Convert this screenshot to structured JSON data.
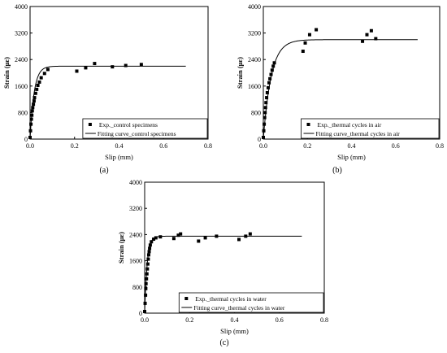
{
  "chart_data": [
    {
      "type": "scatter",
      "panel_label": "(a)",
      "xlabel": "Slip (mm)",
      "ylabel": "Strain (με)",
      "xlim": [
        0,
        0.8
      ],
      "ylim": [
        0,
        4000
      ],
      "xticks": [
        "0.0",
        "0.2",
        "0.4",
        "0.6",
        "0.8"
      ],
      "yticks": [
        "0",
        "800",
        "1600",
        "2400",
        "3200",
        "4000"
      ],
      "legend_position": "bottom-right",
      "series": [
        {
          "name": "Exp._control specimens",
          "kind": "points",
          "marker": "square",
          "points": [
            [
              0.0,
              50
            ],
            [
              0.002,
              250
            ],
            [
              0.004,
              450
            ],
            [
              0.006,
              600
            ],
            [
              0.008,
              720
            ],
            [
              0.01,
              850
            ],
            [
              0.012,
              950
            ],
            [
              0.015,
              1050
            ],
            [
              0.018,
              1150
            ],
            [
              0.02,
              1250
            ],
            [
              0.025,
              1380
            ],
            [
              0.03,
              1500
            ],
            [
              0.035,
              1620
            ],
            [
              0.042,
              1720
            ],
            [
              0.05,
              1850
            ],
            [
              0.065,
              1980
            ],
            [
              0.08,
              2100
            ],
            [
              0.21,
              2050
            ],
            [
              0.25,
              2150
            ],
            [
              0.29,
              2280
            ],
            [
              0.37,
              2180
            ],
            [
              0.43,
              2220
            ],
            [
              0.5,
              2250
            ]
          ]
        },
        {
          "name": "Fitting curve_control specimens",
          "kind": "curve",
          "plateau": 2200,
          "rate": 55,
          "x_max": 0.7
        }
      ]
    },
    {
      "type": "scatter",
      "panel_label": "(b)",
      "xlabel": "Slip (mm)",
      "ylabel": "Strain (με)",
      "xlim": [
        0,
        0.8
      ],
      "ylim": [
        0,
        4000
      ],
      "xticks": [
        "0.0",
        "0.2",
        "0.4",
        "0.6",
        "0.8"
      ],
      "yticks": [
        "0",
        "800",
        "1600",
        "2400",
        "3200",
        "4000"
      ],
      "legend_position": "bottom-right",
      "series": [
        {
          "name": "Exp._thermal cycles in air",
          "kind": "points",
          "marker": "square",
          "points": [
            [
              0.0,
              50
            ],
            [
              0.002,
              250
            ],
            [
              0.004,
              450
            ],
            [
              0.006,
              650
            ],
            [
              0.008,
              800
            ],
            [
              0.01,
              950
            ],
            [
              0.012,
              1100
            ],
            [
              0.015,
              1250
            ],
            [
              0.018,
              1400
            ],
            [
              0.022,
              1550
            ],
            [
              0.026,
              1700
            ],
            [
              0.03,
              1820
            ],
            [
              0.035,
              1950
            ],
            [
              0.04,
              2080
            ],
            [
              0.045,
              2200
            ],
            [
              0.05,
              2300
            ],
            [
              0.18,
              2650
            ],
            [
              0.19,
              2900
            ],
            [
              0.21,
              3150
            ],
            [
              0.24,
              3300
            ],
            [
              0.45,
              2950
            ],
            [
              0.47,
              3150
            ],
            [
              0.49,
              3270
            ],
            [
              0.51,
              3030
            ]
          ]
        },
        {
          "name": "Fitting curve_thermal cycles in air",
          "kind": "curve",
          "plateau": 3000,
          "rate": 28,
          "x_max": 0.7
        }
      ]
    },
    {
      "type": "scatter",
      "panel_label": "(c)",
      "xlabel": "Slip (mm)",
      "ylabel": "Strain (με)",
      "xlim": [
        0,
        0.8
      ],
      "ylim": [
        0,
        4000
      ],
      "xticks": [
        "0.0",
        "0.2",
        "0.4",
        "0.6",
        "0.8"
      ],
      "yticks": [
        "0",
        "800",
        "1600",
        "2400",
        "3200",
        "4000"
      ],
      "legend_position": "bottom-right",
      "series": [
        {
          "name": "Exp._thermal cycles in water",
          "kind": "points",
          "marker": "square",
          "points": [
            [
              0.0,
              50
            ],
            [
              0.002,
              300
            ],
            [
              0.004,
              550
            ],
            [
              0.005,
              750
            ],
            [
              0.006,
              900
            ],
            [
              0.008,
              1050
            ],
            [
              0.01,
              1200
            ],
            [
              0.012,
              1350
            ],
            [
              0.014,
              1500
            ],
            [
              0.016,
              1650
            ],
            [
              0.018,
              1780
            ],
            [
              0.02,
              1880
            ],
            [
              0.022,
              1980
            ],
            [
              0.025,
              2080
            ],
            [
              0.03,
              2180
            ],
            [
              0.04,
              2260
            ],
            [
              0.05,
              2300
            ],
            [
              0.07,
              2330
            ],
            [
              0.13,
              2280
            ],
            [
              0.15,
              2380
            ],
            [
              0.16,
              2420
            ],
            [
              0.24,
              2200
            ],
            [
              0.27,
              2300
            ],
            [
              0.32,
              2350
            ],
            [
              0.42,
              2250
            ],
            [
              0.45,
              2350
            ],
            [
              0.47,
              2420
            ]
          ]
        },
        {
          "name": "Fitting curve_thermal cycles in water",
          "kind": "curve",
          "plateau": 2350,
          "rate": 90,
          "x_max": 0.7
        }
      ]
    }
  ]
}
